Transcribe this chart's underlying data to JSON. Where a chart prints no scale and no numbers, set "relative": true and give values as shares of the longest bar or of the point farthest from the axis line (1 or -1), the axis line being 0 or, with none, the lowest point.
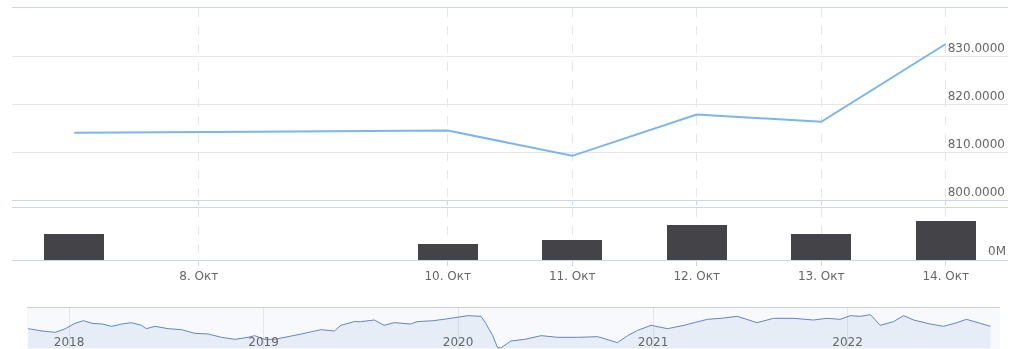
{
  "chart_data": [
    {
      "type": "line",
      "x": [
        "2022-10-07",
        "2022-10-10",
        "2022-10-11",
        "2022-10-12",
        "2022-10-13",
        "2022-10-14"
      ],
      "series": [
        {
          "color": "#7cb5ec",
          "values": [
            814.0,
            814.5,
            809.2,
            817.8,
            816.3,
            832.5
          ]
        }
      ],
      "xlim": [
        "2022-10-06T12:00",
        "2022-10-14T12:00"
      ],
      "xticks": [
        {
          "value": "2022-10-08",
          "label": null
        },
        {
          "value": "2022-10-10",
          "label": null
        },
        {
          "value": "2022-10-11",
          "label": null
        },
        {
          "value": "2022-10-12",
          "label": null
        },
        {
          "value": "2022-10-13",
          "label": null
        },
        {
          "value": "2022-10-14",
          "label": null
        }
      ],
      "ylim": [
        800,
        840
      ],
      "yticks": [
        {
          "value": 800,
          "label": "800.0000"
        },
        {
          "value": 810,
          "label": "810.0000"
        },
        {
          "value": 820,
          "label": "820.0000"
        },
        {
          "value": 830,
          "label": "830.0000"
        }
      ],
      "grid": true,
      "tick_labels": "y"
    },
    {
      "type": "bar",
      "x": [
        "2022-10-07",
        "2022-10-10",
        "2022-10-11",
        "2022-10-12",
        "2022-10-13",
        "2022-10-14"
      ],
      "series": [
        {
          "color": "#434348",
          "values": [
            0.66,
            0.41,
            0.52,
            0.91,
            0.66,
            1
          ]
        }
      ],
      "relative": true,
      "xlim": [
        "2022-10-06T12:00",
        "2022-10-14T12:00"
      ],
      "xticks": [
        {
          "value": "2022-10-08",
          "label": "8. Окт"
        },
        {
          "value": "2022-10-10",
          "label": "10. Окт"
        },
        {
          "value": "2022-10-11",
          "label": "11. Окт"
        },
        {
          "value": "2022-10-12",
          "label": "12. Окт"
        },
        {
          "value": "2022-10-13",
          "label": "13. Окт"
        },
        {
          "value": "2022-10-14",
          "label": "14. Окт"
        }
      ],
      "annotations": [
        "0M"
      ],
      "grid": "x",
      "tick_labels": "x"
    },
    {
      "type": "area",
      "relative": true,
      "x": [
        "2017-10-16",
        "2017-11-11",
        "2017-12-06",
        "2017-12-25",
        "2018-01-12",
        "2018-01-28",
        "2018-02-13",
        "2018-03-04",
        "2018-03-22",
        "2018-04-10",
        "2018-04-28",
        "2018-05-17",
        "2018-05-26",
        "2018-06-11",
        "2018-07-06",
        "2018-07-31",
        "2018-08-25",
        "2018-09-19",
        "2018-10-14",
        "2018-11-08",
        "2018-12-03",
        "2018-12-15",
        "2019-01-03",
        "2019-01-21",
        "2019-02-16",
        "2019-03-13",
        "2019-04-07",
        "2019-04-19",
        "2019-05-14",
        "2019-05-26",
        "2019-06-20",
        "2019-07-02",
        "2019-07-28",
        "2019-08-15",
        "2019-09-03",
        "2019-10-04",
        "2019-10-16",
        "2019-11-16",
        "2019-12-18",
        "2020-01-19",
        "2020-02-13",
        "2020-02-22",
        "2020-03-06",
        "2020-03-15",
        "2020-03-21",
        "2020-04-09",
        "2020-05-05",
        "2020-06-05",
        "2020-07-06",
        "2020-08-12",
        "2020-09-19",
        "2020-10-26",
        "2020-11-14",
        "2020-12-03",
        "2020-12-28",
        "2021-01-28",
        "2021-02-28",
        "2021-03-19",
        "2021-04-13",
        "2021-05-08",
        "2021-06-08",
        "2021-07-15",
        "2021-08-15",
        "2021-09-22",
        "2021-10-29",
        "2021-11-23",
        "2021-12-18",
        "2022-01-06",
        "2022-01-25",
        "2022-02-13",
        "2022-03-03",
        "2022-03-28",
        "2022-04-16",
        "2022-05-05",
        "2022-06-05",
        "2022-06-30",
        "2022-07-25",
        "2022-08-12",
        "2022-09-07",
        "2022-09-26"
      ],
      "series": [
        {
          "color": "#6685c2",
          "values": [
            0.58,
            0.51,
            0.47,
            0.58,
            0.74,
            0.82,
            0.74,
            0.72,
            0.65,
            0.72,
            0.76,
            0.68,
            0.58,
            0.65,
            0.58,
            0.55,
            0.44,
            0.42,
            0.32,
            0.26,
            0.32,
            0.37,
            0.26,
            0.26,
            0.34,
            0.42,
            0.51,
            0.55,
            0.51,
            0.68,
            0.79,
            0.79,
            0.84,
            0.68,
            0.76,
            0.72,
            0.79,
            0.82,
            0.89,
            0.97,
            0.95,
            0.74,
            0.37,
            0.02,
            0,
            0.21,
            0.26,
            0.37,
            0.32,
            0.32,
            0.34,
            0.16,
            0.37,
            0.53,
            0.68,
            0.58,
            0.68,
            0.76,
            0.86,
            0.89,
            0.95,
            0.76,
            0.89,
            0.89,
            0.84,
            0.89,
            0.86,
            0.97,
            0.95,
            1,
            0.68,
            0.79,
            0.97,
            0.84,
            0.72,
            0.65,
            0.76,
            0.86,
            0.74,
            0.65
          ]
        }
      ],
      "xlim": [
        "2017-10-14",
        "2022-10-14"
      ],
      "xticks": [
        {
          "value": "2018-01-01",
          "label": "2018"
        },
        {
          "value": "2019-01-01",
          "label": "2019"
        },
        {
          "value": "2020-01-01",
          "label": "2020"
        },
        {
          "value": "2021-01-01",
          "label": "2021"
        },
        {
          "value": "2022-01-01",
          "label": "2022"
        }
      ],
      "grid": "x",
      "tick_labels": "x"
    }
  ]
}
